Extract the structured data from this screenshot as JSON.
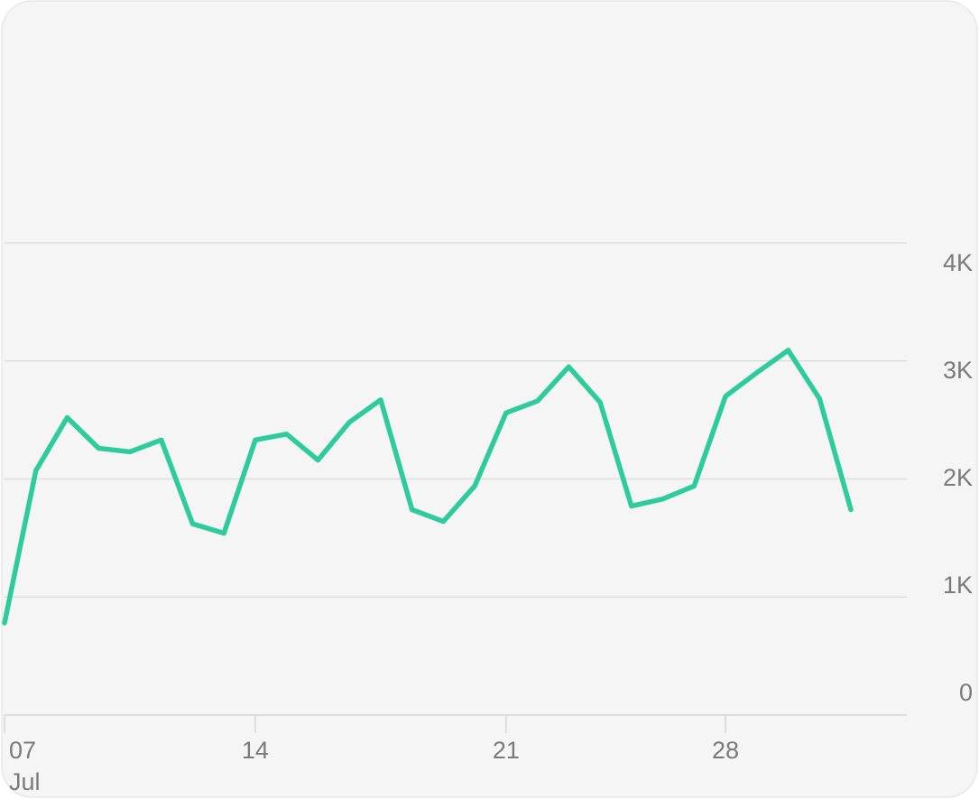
{
  "chart_data": {
    "type": "line",
    "categories": [
      "07",
      null,
      null,
      null,
      null,
      null,
      null,
      null,
      "14",
      null,
      null,
      null,
      null,
      null,
      null,
      null,
      "21",
      null,
      null,
      null,
      null,
      null,
      null,
      "28",
      null,
      null,
      null,
      null
    ],
    "month_label": "Jul",
    "series": [
      {
        "color": "#2ecc9b",
        "values": [
          780,
          2070,
          2520,
          2260,
          2230,
          2330,
          1620,
          1540,
          2330,
          2380,
          2160,
          2480,
          2670,
          1740,
          1640,
          1940,
          2560,
          2660,
          2950,
          2650,
          1770,
          1830,
          1940,
          2700,
          2900,
          3090,
          2680,
          1740
        ]
      }
    ],
    "ylim": [
      0,
      6000
    ],
    "yticks": [
      {
        "value": 0,
        "label": "0"
      },
      {
        "value": 1000,
        "label": "1K"
      },
      {
        "value": 2000,
        "label": "2K"
      },
      {
        "value": 3000,
        "label": "3K"
      },
      {
        "value": 4000,
        "label": "4K"
      }
    ],
    "grid": true
  }
}
